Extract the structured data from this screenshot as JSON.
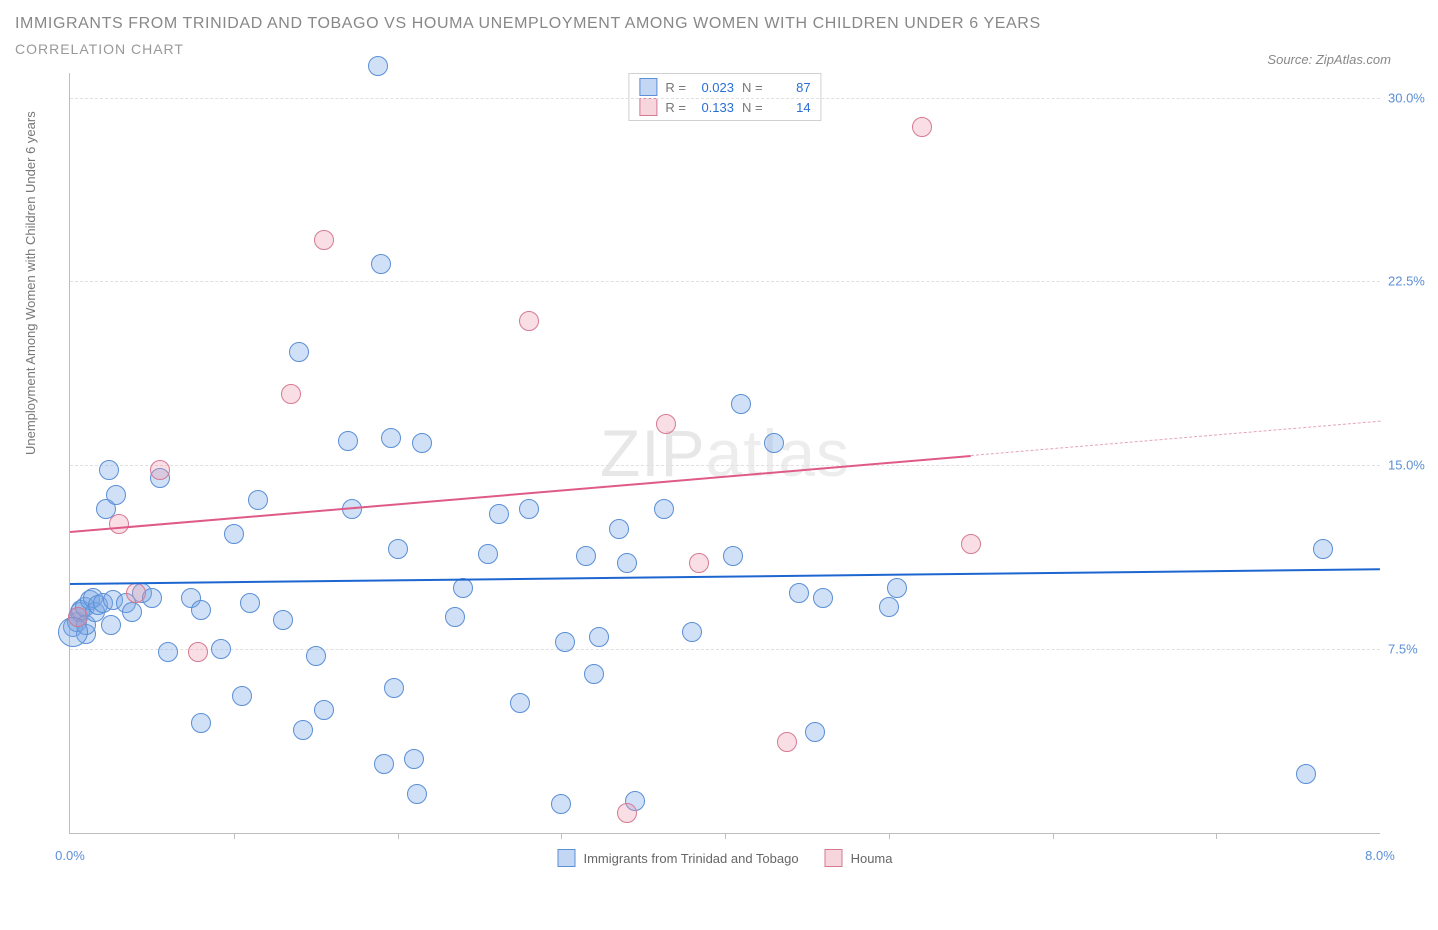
{
  "header": {
    "title": "IMMIGRANTS FROM TRINIDAD AND TOBAGO VS HOUMA UNEMPLOYMENT AMONG WOMEN WITH CHILDREN UNDER 6 YEARS",
    "subtitle": "CORRELATION CHART",
    "source_label": "Source:",
    "source_name": "ZipAtlas.com"
  },
  "chart": {
    "type": "scatter",
    "x_axis": {
      "min": 0.0,
      "max": 8.0,
      "tick_step": 1.0,
      "label_min": "0.0%",
      "label_max": "8.0%"
    },
    "y_axis": {
      "min": 0.0,
      "max": 31.0,
      "ticks": [
        7.5,
        15.0,
        22.5,
        30.0
      ],
      "tick_labels": [
        "7.5%",
        "15.0%",
        "22.5%",
        "30.0%"
      ],
      "label": "Unemployment Among Women with Children Under 6 years"
    },
    "grid_color": "#e0e0e0",
    "axis_color": "#bdbdbd",
    "background_color": "#ffffff",
    "point_radius": 9,
    "point_radius_large": 14,
    "series": {
      "a": {
        "name": "Immigrants from Trinidad and Tobago",
        "stroke": "#5b8fd6",
        "fill": "rgba(121,165,228,0.35)",
        "R": "0.023",
        "N": "87",
        "regression": {
          "x1": 0,
          "y1": 10.2,
          "x2": 8,
          "y2": 10.8,
          "color": "#1d66d0",
          "width": 2
        },
        "points": [
          [
            0.02,
            8.4
          ],
          [
            0.04,
            8.6
          ],
          [
            0.05,
            8.8
          ],
          [
            0.06,
            9.0
          ],
          [
            0.07,
            9.1
          ],
          [
            0.09,
            9.2
          ],
          [
            0.1,
            8.1
          ],
          [
            0.1,
            8.5
          ],
          [
            0.12,
            9.5
          ],
          [
            0.14,
            9.6
          ],
          [
            0.15,
            9.0
          ],
          [
            0.17,
            9.3
          ],
          [
            0.2,
            9.4
          ],
          [
            0.22,
            13.2
          ],
          [
            0.24,
            14.8
          ],
          [
            0.25,
            8.5
          ],
          [
            0.26,
            9.5
          ],
          [
            0.28,
            13.8
          ],
          [
            0.34,
            9.4
          ],
          [
            0.38,
            9.0
          ],
          [
            0.44,
            9.8
          ],
          [
            0.5,
            9.6
          ],
          [
            0.55,
            14.5
          ],
          [
            0.6,
            7.4
          ],
          [
            0.74,
            9.6
          ],
          [
            0.8,
            4.5
          ],
          [
            0.8,
            9.1
          ],
          [
            0.92,
            7.5
          ],
          [
            1.0,
            12.2
          ],
          [
            1.05,
            5.6
          ],
          [
            1.1,
            9.4
          ],
          [
            1.15,
            13.6
          ],
          [
            1.3,
            8.7
          ],
          [
            1.4,
            19.6
          ],
          [
            1.42,
            4.2
          ],
          [
            1.5,
            7.2
          ],
          [
            1.55,
            5.0
          ],
          [
            1.7,
            16.0
          ],
          [
            1.72,
            13.2
          ],
          [
            1.88,
            31.3
          ],
          [
            1.9,
            23.2
          ],
          [
            1.92,
            2.8
          ],
          [
            1.96,
            16.1
          ],
          [
            1.98,
            5.9
          ],
          [
            2.0,
            11.6
          ],
          [
            2.1,
            3.0
          ],
          [
            2.12,
            1.6
          ],
          [
            2.15,
            15.9
          ],
          [
            2.35,
            8.8
          ],
          [
            2.4,
            10.0
          ],
          [
            2.55,
            11.4
          ],
          [
            2.62,
            13.0
          ],
          [
            2.75,
            5.3
          ],
          [
            2.8,
            13.2
          ],
          [
            3.0,
            1.2
          ],
          [
            3.02,
            7.8
          ],
          [
            3.15,
            11.3
          ],
          [
            3.2,
            6.5
          ],
          [
            3.23,
            8.0
          ],
          [
            3.35,
            12.4
          ],
          [
            3.4,
            11.0
          ],
          [
            3.45,
            1.3
          ],
          [
            3.63,
            13.2
          ],
          [
            3.8,
            8.2
          ],
          [
            4.05,
            11.3
          ],
          [
            4.1,
            17.5
          ],
          [
            4.3,
            15.9
          ],
          [
            4.45,
            9.8
          ],
          [
            4.55,
            4.1
          ],
          [
            4.6,
            9.6
          ],
          [
            5.0,
            9.2
          ],
          [
            5.05,
            10.0
          ],
          [
            7.55,
            2.4
          ],
          [
            7.65,
            11.6
          ]
        ],
        "big_point": [
          0.02,
          8.2
        ]
      },
      "b": {
        "name": "Houma",
        "stroke": "#d67a93",
        "fill": "rgba(235,150,170,0.30)",
        "R": "0.133",
        "N": "14",
        "regression": {
          "x1": 0,
          "y1": 12.3,
          "x2": 5.5,
          "y2": 15.4,
          "extend_to": 8,
          "extend_y": 16.8,
          "color": "#e05a88",
          "width": 2
        },
        "points": [
          [
            0.05,
            8.8
          ],
          [
            0.3,
            12.6
          ],
          [
            0.4,
            9.8
          ],
          [
            0.55,
            14.8
          ],
          [
            0.78,
            7.4
          ],
          [
            1.35,
            17.9
          ],
          [
            1.55,
            24.2
          ],
          [
            2.8,
            20.9
          ],
          [
            3.4,
            0.8
          ],
          [
            3.64,
            16.7
          ],
          [
            3.84,
            11.0
          ],
          [
            4.38,
            3.7
          ],
          [
            5.5,
            11.8
          ],
          [
            5.2,
            28.8
          ]
        ]
      }
    },
    "legend_bottom": [
      {
        "series": "a"
      },
      {
        "series": "b"
      }
    ],
    "watermark": {
      "prefix": "ZIP",
      "suffix": "atlas"
    }
  }
}
